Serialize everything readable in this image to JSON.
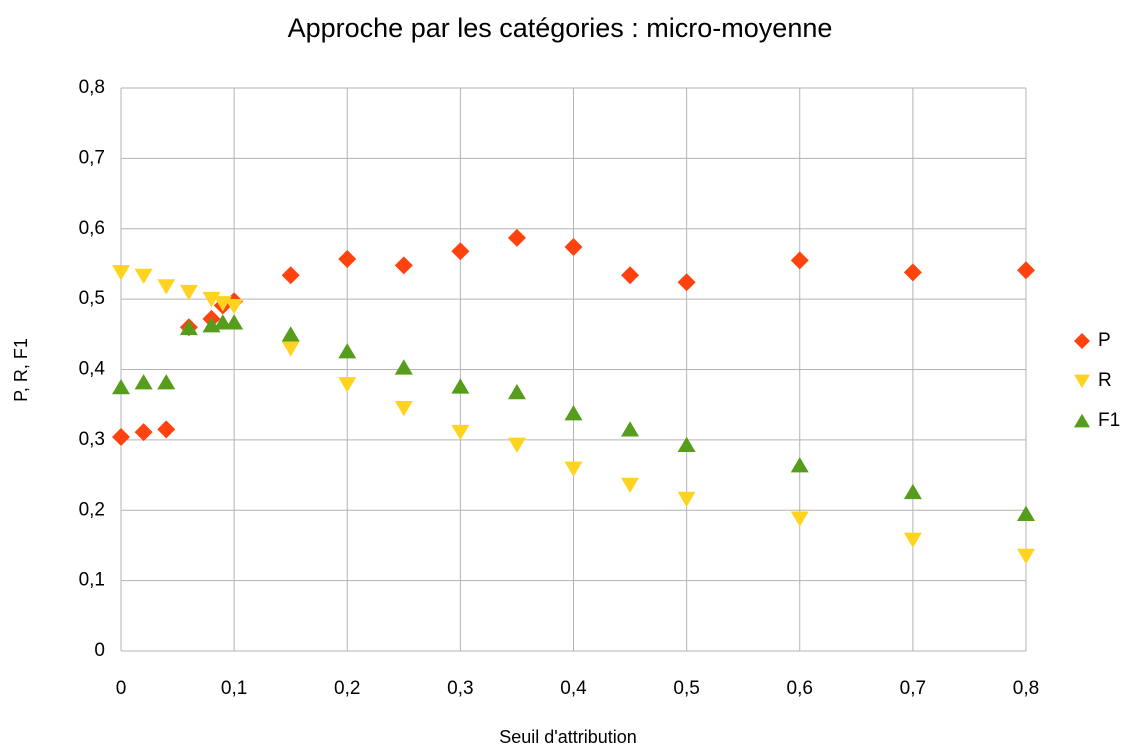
{
  "chart_data": {
    "type": "scatter",
    "title": "Approche par les catégories : micro-moyenne",
    "x_label": "Seuil d'attribution",
    "y_label": "P, R, F1",
    "x": [
      0,
      0.02,
      0.04,
      0.06,
      0.08,
      0.09,
      0.1,
      0.15,
      0.2,
      0.25,
      0.3,
      0.35,
      0.4,
      0.45,
      0.5,
      0.6,
      0.7,
      0.8
    ],
    "series": [
      {
        "name": "P",
        "color": "#ff420e",
        "marker": "diamond",
        "values": [
          0.304,
          0.311,
          0.315,
          0.46,
          0.472,
          0.491,
          0.497,
          0.534,
          0.557,
          0.548,
          0.568,
          0.587,
          0.574,
          0.534,
          0.524,
          0.555,
          0.538,
          0.541
        ]
      },
      {
        "name": "R",
        "color": "#ffd320",
        "marker": "triangle-down",
        "values": [
          0.538,
          0.533,
          0.518,
          0.51,
          0.5,
          0.494,
          0.49,
          0.43,
          0.379,
          0.345,
          0.311,
          0.293,
          0.259,
          0.236,
          0.216,
          0.188,
          0.158,
          0.135
        ]
      },
      {
        "name": "F1",
        "color": "#579d1c",
        "marker": "triangle-up",
        "values": [
          0.375,
          0.382,
          0.382,
          0.459,
          0.463,
          0.467,
          0.467,
          0.45,
          0.426,
          0.403,
          0.376,
          0.368,
          0.338,
          0.315,
          0.293,
          0.264,
          0.226,
          0.195
        ]
      }
    ],
    "xlim": [
      0,
      0.8
    ],
    "ylim": [
      0,
      0.8
    ],
    "xticks": [
      0,
      {
        "value": 0.1,
        "label": "0,1"
      },
      {
        "value": 0.2,
        "label": "0,2"
      },
      {
        "value": 0.3,
        "label": "0,3"
      },
      {
        "value": 0.4,
        "label": "0,4"
      },
      {
        "value": 0.5,
        "label": "0,5"
      },
      {
        "value": 0.6,
        "label": "0,6"
      },
      {
        "value": 0.7,
        "label": "0,7"
      },
      {
        "value": 0.8,
        "label": "0,8"
      }
    ],
    "yticks": [
      0,
      {
        "value": 0.1,
        "label": "0,1"
      },
      {
        "value": 0.2,
        "label": "0,2"
      },
      {
        "value": 0.3,
        "label": "0,3"
      },
      {
        "value": 0.4,
        "label": "0,4"
      },
      {
        "value": 0.5,
        "label": "0,5"
      },
      {
        "value": 0.6,
        "label": "0,6"
      },
      {
        "value": 0.7,
        "label": "0,7"
      },
      {
        "value": 0.8,
        "label": "0,8"
      }
    ],
    "grid": true,
    "legend": "right"
  }
}
